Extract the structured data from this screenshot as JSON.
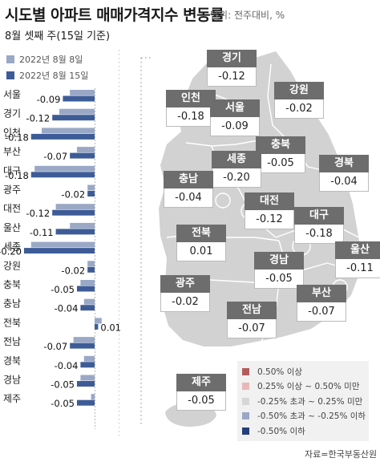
{
  "header": {
    "title": "시도별 아파트 매매가격지수 변동률",
    "unit": "단위: 전주대비, %",
    "subtitle": "8월 셋째 주(15일 기준)"
  },
  "colors": {
    "prev": "#9aa8c6",
    "curr": "#3d5c97",
    "label_bg": "#6d6d6d",
    "map_fill": "#d2d2d2"
  },
  "chart_data": {
    "type": "bar",
    "orientation": "horizontal",
    "categories": [
      "서울",
      "경기",
      "인천",
      "부산",
      "대구",
      "광주",
      "대전",
      "울산",
      "세종",
      "강원",
      "충북",
      "충남",
      "전북",
      "전남",
      "경북",
      "경남",
      "제주"
    ],
    "series": [
      {
        "name": "2022년 8월 8일",
        "values": [
          -0.07,
          -0.1,
          -0.15,
          -0.05,
          -0.17,
          -0.02,
          -0.11,
          -0.07,
          -0.18,
          -0.02,
          -0.04,
          -0.03,
          0.02,
          -0.06,
          -0.03,
          -0.04,
          -0.01
        ]
      },
      {
        "name": "2022년 8월 15일",
        "values": [
          -0.09,
          -0.12,
          -0.18,
          -0.07,
          -0.18,
          -0.02,
          -0.12,
          -0.11,
          -0.2,
          -0.02,
          -0.05,
          -0.04,
          0.01,
          -0.07,
          -0.04,
          -0.05,
          -0.05
        ]
      }
    ],
    "value_labels": [
      "-0.09",
      "-0.12",
      "-0.18",
      "-0.07",
      "-0.18",
      "-0.02",
      "-0.12",
      "-0.11",
      "-0.20",
      "-0.02",
      "-0.05",
      "-0.04",
      "0.01",
      "-0.07",
      "-0.04",
      "-0.05",
      "-0.05"
    ],
    "xlim": [
      -0.2,
      0.02
    ]
  },
  "map": {
    "regions": [
      {
        "name": "경기",
        "value": "-0.12"
      },
      {
        "name": "강원",
        "value": "-0.02"
      },
      {
        "name": "인천",
        "value": "-0.18"
      },
      {
        "name": "서울",
        "value": "-0.09"
      },
      {
        "name": "충북",
        "value": "-0.05"
      },
      {
        "name": "세종",
        "value": "-0.20"
      },
      {
        "name": "경북",
        "value": "-0.04"
      },
      {
        "name": "충남",
        "value": "-0.04"
      },
      {
        "name": "대전",
        "value": "-0.12"
      },
      {
        "name": "대구",
        "value": "-0.18"
      },
      {
        "name": "전북",
        "value": "0.01"
      },
      {
        "name": "울산",
        "value": "-0.11"
      },
      {
        "name": "경남",
        "value": "-0.05"
      },
      {
        "name": "광주",
        "value": "-0.02"
      },
      {
        "name": "부산",
        "value": "-0.07"
      },
      {
        "name": "전남",
        "value": "-0.07"
      },
      {
        "name": "제주",
        "value": "-0.05"
      }
    ],
    "legend": [
      {
        "label": "0.50% 이상",
        "color": "#b45b5b"
      },
      {
        "label": "0.25% 이상 ~ 0.50% 미만",
        "color": "#e8b7b7"
      },
      {
        "label": "-0.25% 초과 ~ 0.25% 미만",
        "color": "#d6d6d6"
      },
      {
        "label": "-0.50% 초과 ~ -0.25% 이하",
        "color": "#9aa8c6"
      },
      {
        "label": "-0.50% 이하",
        "color": "#23407a"
      }
    ]
  },
  "source": "자료=한국부동산원"
}
